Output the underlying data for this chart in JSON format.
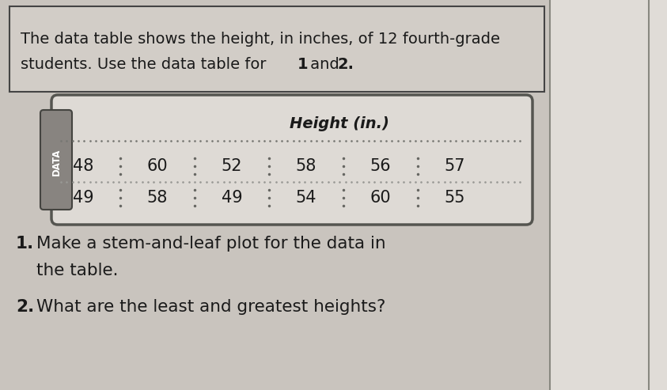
{
  "row1": [
    "48",
    "60",
    "52",
    "58",
    "56",
    "57"
  ],
  "row2": [
    "49",
    "58",
    "49",
    "54",
    "60",
    "55"
  ],
  "header_line1": "The data table shows the height, in inches, of 12 fourth-grade",
  "header_line2_pre": "students. Use the data table for ",
  "header_bold1": "1",
  "header_mid": " and ",
  "header_bold2": "2.",
  "table_title": "Height (in.)",
  "data_label": "DATA",
  "q1_num": "1.",
  "q1_text": " Make a stem-and-leaf plot for the data in",
  "q1_line2": "   the table.",
  "q2_num": "2.",
  "q2_text": " What are the least and greatest heights?",
  "page_bg": "#c9c4be",
  "header_box_bg": "#d2cdc7",
  "table_bg_light": "#dedad5",
  "table_bg_dark": "#c8c3bc",
  "data_tab_bg": "#888480",
  "right_panel_bg": "#dbd7d2",
  "text_dark": "#1a1a1a",
  "text_white": "#ffffff",
  "border_color": "#555550"
}
